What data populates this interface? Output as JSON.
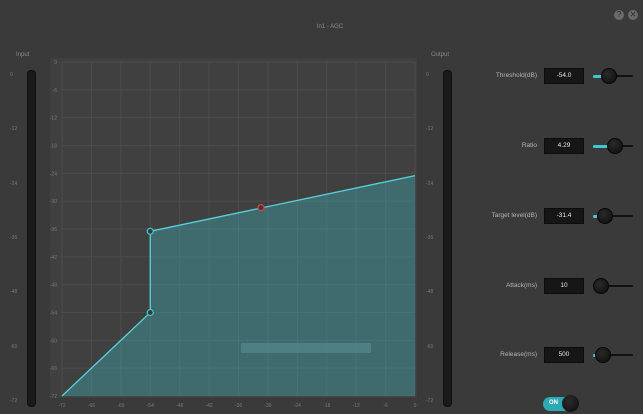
{
  "window": {
    "title": "In1 - AGC",
    "help_icon": "help-icon",
    "close_icon": "close-icon"
  },
  "input_meter": {
    "label": "Input",
    "ticks": [
      "0",
      "-12",
      "-24",
      "-36",
      "-48",
      "-60",
      "-72"
    ]
  },
  "output_meter": {
    "label": "Output",
    "ticks": [
      "0",
      "-12",
      "-24",
      "-36",
      "-48",
      "-60",
      "-72"
    ]
  },
  "chart_data": {
    "type": "area",
    "x_ticks": [
      -72,
      -66,
      -60,
      -54,
      -48,
      -42,
      -36,
      -30,
      -24,
      -18,
      -12,
      -6,
      0
    ],
    "y_ticks": [
      0,
      -6,
      -12,
      -18,
      -24,
      -30,
      -36,
      -42,
      -48,
      -54,
      -60,
      -66,
      -72
    ],
    "xlim": [
      -72,
      0
    ],
    "ylim": [
      -72,
      0
    ],
    "grid": true,
    "curve": [
      {
        "x": -72,
        "y": -72
      },
      {
        "x": -54,
        "y": -54
      },
      {
        "x": -54,
        "y": -36.5
      },
      {
        "x": 0,
        "y": -24.5
      }
    ],
    "handles": [
      {
        "x": -54,
        "y": -54,
        "color": "#3fc8d2"
      },
      {
        "x": -54,
        "y": -36.5,
        "color": "#3fc8d2"
      },
      {
        "x": -31.4,
        "y": -31.4,
        "color": "#e04040"
      }
    ],
    "fill_color": "#3fc8d2",
    "line_color": "#56d3dc"
  },
  "params": [
    {
      "label": "Threshold(dB)",
      "value": "-54.0",
      "fill": 0.2
    },
    {
      "label": "Ratio",
      "value": "4.29",
      "fill": 0.35
    },
    {
      "label": "Target level(dB)",
      "value": "-31.4",
      "fill": 0.1
    },
    {
      "label": "Attack(ms)",
      "value": "10",
      "fill": 0.0
    },
    {
      "label": "Release(ms)",
      "value": "500",
      "fill": 0.05
    }
  ],
  "toggle": {
    "label": "ON",
    "state": true
  }
}
